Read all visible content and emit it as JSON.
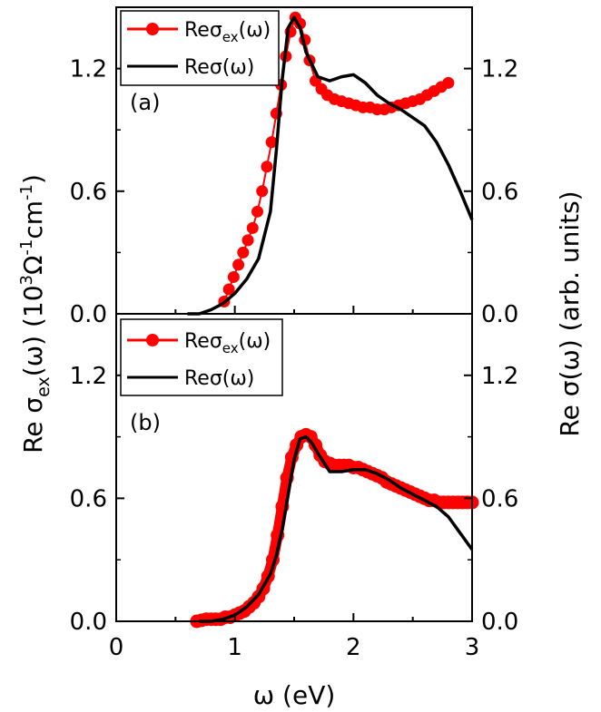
{
  "chart_data": [
    {
      "type": "line",
      "panel_label": "(a)",
      "xlim": [
        0,
        3
      ],
      "ylim": [
        0,
        1.5
      ],
      "y_ticks": [
        "0.0",
        "0.6",
        "1.2"
      ],
      "y2_ticks": [
        "0.0",
        "0.6",
        "1.2"
      ],
      "legend": {
        "placement": "top-left",
        "entries": [
          {
            "base": "Re",
            "sym": "σ",
            "sub": "ex",
            "tail": "(ω)"
          },
          {
            "base": "Re",
            "sym": "σ",
            "sub": "",
            "tail": "(ω)"
          }
        ]
      },
      "series": [
        {
          "name": "Reσex(ω)",
          "color": "#ff0000",
          "style": "markers",
          "x": [
            0.91,
            0.95,
            0.99,
            1.03,
            1.07,
            1.11,
            1.15,
            1.19,
            1.23,
            1.27,
            1.31,
            1.35,
            1.39,
            1.43,
            1.47,
            1.51,
            1.55,
            1.59,
            1.63,
            1.68,
            1.73,
            1.78,
            1.84,
            1.9,
            1.96,
            2.02,
            2.08,
            2.14,
            2.2,
            2.26,
            2.32,
            2.38,
            2.44,
            2.5,
            2.56,
            2.62,
            2.68,
            2.74,
            2.8
          ],
          "y": [
            0.06,
            0.12,
            0.18,
            0.24,
            0.3,
            0.36,
            0.42,
            0.5,
            0.6,
            0.72,
            0.84,
            0.98,
            1.12,
            1.26,
            1.38,
            1.45,
            1.42,
            1.34,
            1.24,
            1.14,
            1.1,
            1.07,
            1.05,
            1.04,
            1.03,
            1.02,
            1.01,
            1.01,
            1.0,
            1.0,
            1.01,
            1.02,
            1.03,
            1.04,
            1.05,
            1.07,
            1.09,
            1.11,
            1.13
          ]
        },
        {
          "name": "Reσ(ω)",
          "color": "#000000",
          "style": "line",
          "x": [
            0.6,
            0.7,
            0.8,
            0.9,
            1.0,
            1.1,
            1.2,
            1.3,
            1.35,
            1.4,
            1.45,
            1.5,
            1.55,
            1.6,
            1.7,
            1.8,
            1.9,
            2.0,
            2.1,
            2.2,
            2.3,
            2.4,
            2.5,
            2.6,
            2.7,
            2.8,
            2.9,
            3.0
          ],
          "y": [
            0.0,
            0.0,
            0.02,
            0.05,
            0.1,
            0.17,
            0.27,
            0.5,
            0.8,
            1.15,
            1.4,
            1.45,
            1.4,
            1.28,
            1.16,
            1.14,
            1.16,
            1.17,
            1.13,
            1.07,
            1.03,
            1.0,
            0.96,
            0.92,
            0.84,
            0.73,
            0.6,
            0.46
          ]
        }
      ]
    },
    {
      "type": "line",
      "panel_label": "(b)",
      "xlim": [
        0,
        3
      ],
      "ylim": [
        0,
        1.5
      ],
      "x_ticks": [
        "0",
        "1",
        "2",
        "3"
      ],
      "xlabel": "ω (eV)",
      "y_ticks": [
        "0.0",
        "0.6",
        "1.2"
      ],
      "y2_ticks": [
        "0.0",
        "0.6",
        "1.2"
      ],
      "legend": {
        "placement": "top-left",
        "entries": [
          {
            "base": "Re",
            "sym": "σ",
            "sub": "ex",
            "tail": "(ω)"
          },
          {
            "base": "Re",
            "sym": "σ",
            "sub": "",
            "tail": "(ω)"
          }
        ]
      },
      "series": [
        {
          "name": "Reσex(ω)",
          "color": "#ff0000",
          "style": "markers-dense",
          "x": [
            0.68,
            0.72,
            0.76,
            0.8,
            0.84,
            0.88,
            0.92,
            0.96,
            1.0,
            1.04,
            1.08,
            1.12,
            1.16,
            1.2,
            1.24,
            1.28,
            1.32,
            1.36,
            1.4,
            1.44,
            1.48,
            1.52,
            1.56,
            1.6,
            1.64,
            1.68,
            1.72,
            1.76,
            1.8,
            1.84,
            1.88,
            1.92,
            1.96,
            2.0,
            2.04,
            2.08,
            2.12,
            2.16,
            2.2,
            2.24,
            2.28,
            2.32,
            2.36,
            2.4,
            2.44,
            2.48,
            2.52,
            2.56,
            2.6,
            2.64,
            2.68,
            2.72,
            2.76,
            2.8,
            2.84,
            2.88,
            2.92,
            2.96,
            3.0
          ],
          "y": [
            0.0,
            0.005,
            0.01,
            0.01,
            0.01,
            0.01,
            0.02,
            0.02,
            0.03,
            0.04,
            0.05,
            0.07,
            0.09,
            0.12,
            0.16,
            0.22,
            0.3,
            0.42,
            0.56,
            0.7,
            0.8,
            0.86,
            0.9,
            0.91,
            0.9,
            0.86,
            0.81,
            0.78,
            0.77,
            0.76,
            0.76,
            0.76,
            0.76,
            0.75,
            0.75,
            0.74,
            0.73,
            0.72,
            0.71,
            0.7,
            0.68,
            0.67,
            0.66,
            0.65,
            0.64,
            0.63,
            0.62,
            0.61,
            0.6,
            0.59,
            0.59,
            0.58,
            0.58,
            0.58,
            0.58,
            0.58,
            0.58,
            0.58,
            0.58
          ]
        },
        {
          "name": "Reσ(ω)",
          "color": "#000000",
          "style": "line",
          "x": [
            0.7,
            0.8,
            0.9,
            1.0,
            1.1,
            1.2,
            1.3,
            1.35,
            1.4,
            1.45,
            1.5,
            1.55,
            1.6,
            1.65,
            1.7,
            1.8,
            1.9,
            2.0,
            2.1,
            2.2,
            2.3,
            2.4,
            2.5,
            2.6,
            2.7,
            2.8,
            2.9,
            3.0
          ],
          "y": [
            0.0,
            0.0,
            0.01,
            0.03,
            0.07,
            0.13,
            0.23,
            0.32,
            0.45,
            0.62,
            0.79,
            0.89,
            0.9,
            0.87,
            0.82,
            0.73,
            0.73,
            0.74,
            0.74,
            0.72,
            0.69,
            0.65,
            0.62,
            0.59,
            0.56,
            0.51,
            0.43,
            0.35
          ]
        }
      ]
    }
  ],
  "ylabel_left": {
    "base": "Re ",
    "sym": "σ",
    "sub": "ex",
    "mid": "(ω) (10",
    "sup1": "3",
    "mid2": "Ω",
    "sup2": "-1",
    "mid3": "cm",
    "sup3": "-1",
    "end": ")"
  },
  "ylabel_right": "Re σ(ω) (arb. units)"
}
